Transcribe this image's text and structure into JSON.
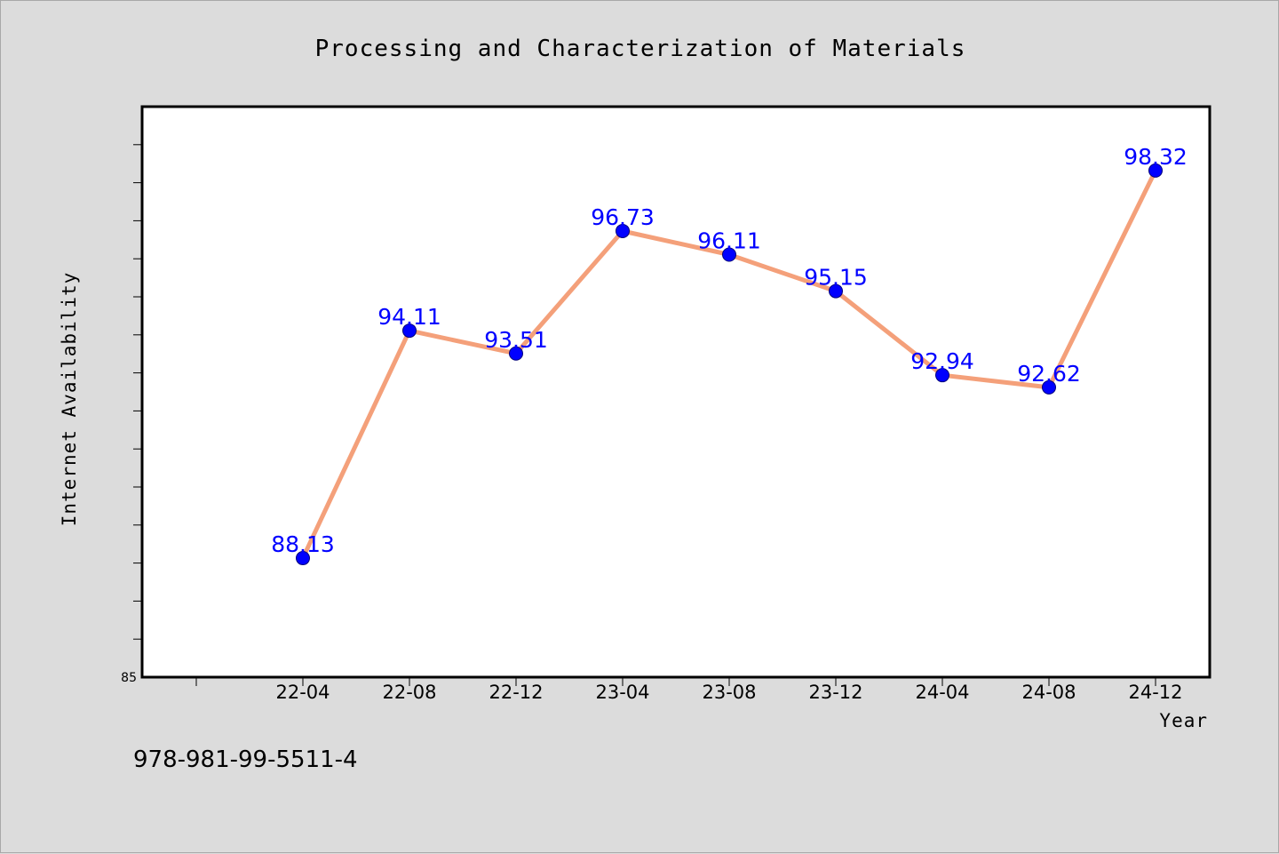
{
  "chart_data": {
    "type": "line",
    "title": "Processing and Characterization of Materials",
    "xlabel": "Year",
    "ylabel": "Internet Availability",
    "categories": [
      "22-04",
      "22-08",
      "22-12",
      "23-04",
      "23-08",
      "23-12",
      "24-04",
      "24-08",
      "24-12"
    ],
    "series": [
      {
        "values": [
          88.13,
          94.11,
          93.51,
          96.73,
          96.11,
          95.15,
          92.94,
          92.62,
          98.32
        ]
      }
    ],
    "data_labels": [
      "88.13",
      "94.11",
      "93.51",
      "96.73",
      "96.11",
      "95.15",
      "92.94",
      "92.62",
      "98.32"
    ],
    "ylim": [
      85,
      100
    ],
    "y_tick_labels": [
      "85"
    ],
    "grid": false,
    "legend": "none",
    "line_color": "#f4a07a",
    "marker_color": "#0000ff",
    "label_color": "#0000ff"
  },
  "footer": {
    "isbn": "978-981-99-5511-4"
  }
}
